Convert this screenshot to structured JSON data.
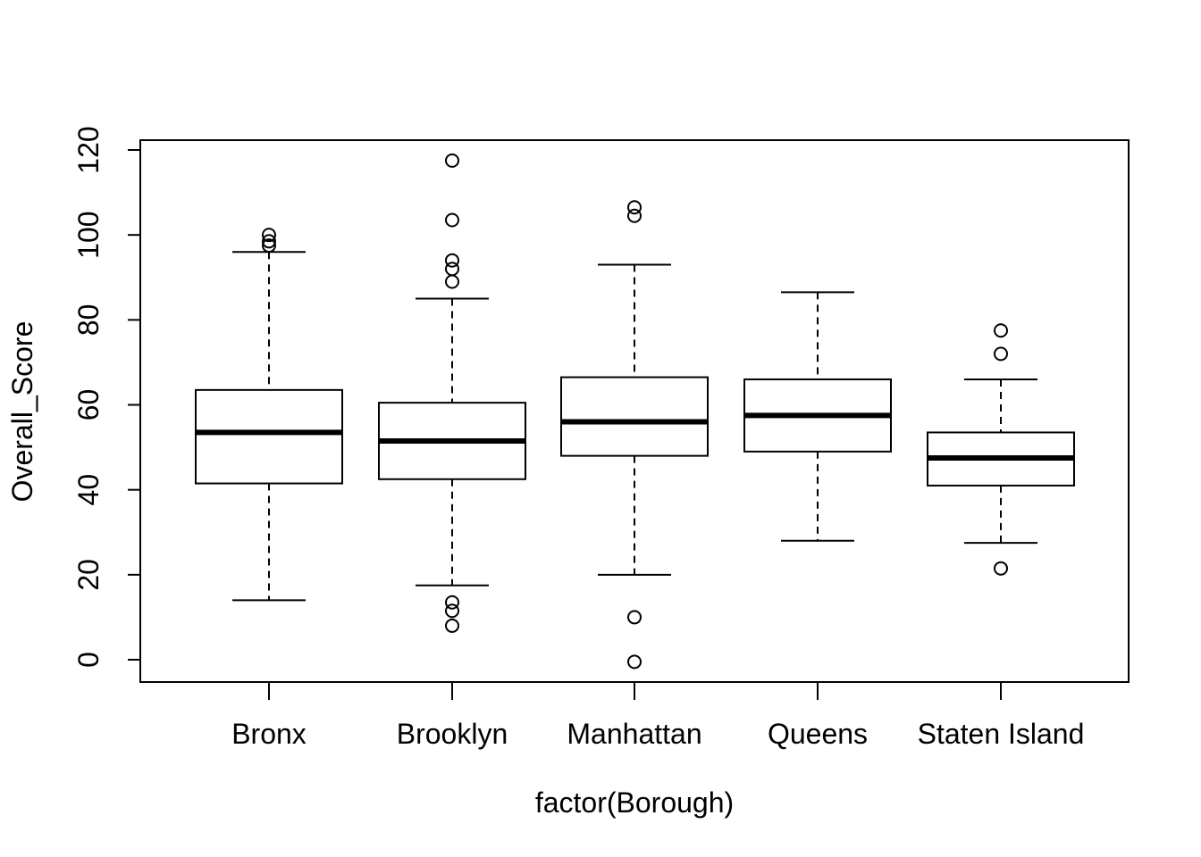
{
  "chart_data": {
    "type": "box",
    "title": "",
    "xlabel": "factor(Borough)",
    "ylabel": "Overall_Score",
    "ylim": [
      -5,
      122
    ],
    "y_ticks": [
      0,
      20,
      40,
      60,
      80,
      100,
      120
    ],
    "y_tick_labels": [
      "0",
      "20",
      "40",
      "60",
      "80",
      "100",
      "120"
    ],
    "categories": [
      "Bronx",
      "Brooklyn",
      "Manhattan",
      "Queens",
      "Staten Island"
    ],
    "boxes": [
      {
        "category": "Bronx",
        "whisker_low": 14,
        "q1": 41.5,
        "median": 53.5,
        "q3": 63.5,
        "whisker_high": 96,
        "outliers": [
          97.5,
          98.5,
          100
        ]
      },
      {
        "category": "Brooklyn",
        "whisker_low": 17.5,
        "q1": 42.5,
        "median": 51.5,
        "q3": 60.5,
        "whisker_high": 85,
        "outliers": [
          8,
          11.5,
          13.5,
          89,
          92,
          94,
          103.5,
          117.5
        ]
      },
      {
        "category": "Manhattan",
        "whisker_low": 20,
        "q1": 48,
        "median": 56,
        "q3": 66.5,
        "whisker_high": 93,
        "outliers": [
          -0.5,
          10,
          104.5,
          106.5
        ]
      },
      {
        "category": "Queens",
        "whisker_low": 28,
        "q1": 49,
        "median": 57.5,
        "q3": 66,
        "whisker_high": 86.5,
        "outliers": []
      },
      {
        "category": "Staten Island",
        "whisker_low": 27.5,
        "q1": 41,
        "median": 47.5,
        "q3": 53.5,
        "whisker_high": 66,
        "outliers": [
          21.5,
          72,
          77.5
        ]
      }
    ]
  }
}
